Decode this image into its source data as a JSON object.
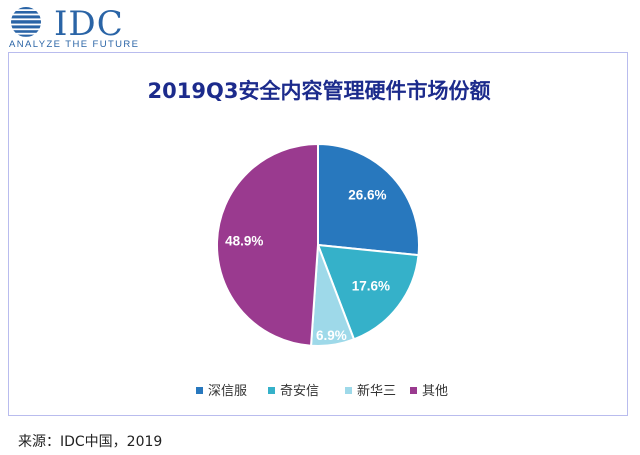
{
  "header": {
    "logo_text": "IDC",
    "logo_tagline": "ANALYZE THE FUTURE"
  },
  "chart_data": {
    "type": "pie",
    "title": "2019Q3安全内容管理硬件市场份额",
    "categories": [
      "深信服",
      "奇安信",
      "新华三",
      "其他"
    ],
    "values": [
      26.6,
      17.6,
      6.9,
      48.9
    ],
    "labels": [
      "26.6%",
      "17.6%",
      "6.9%",
      "48.9%"
    ],
    "colors": [
      "#2878be",
      "#35b1c9",
      "#9ed9e9",
      "#9a3a8f"
    ],
    "start_angle": "12 o'clock, clockwise",
    "legend_position": "bottom"
  },
  "footer": {
    "source": "来源：IDC中国，2019"
  }
}
